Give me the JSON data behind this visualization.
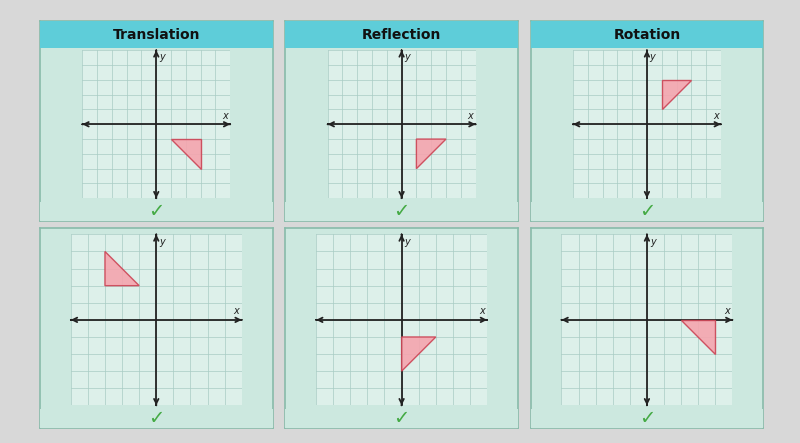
{
  "title_bg": "#5ecdd9",
  "panel_bg": "#cce8df",
  "outer_bg": "#d8d8d8",
  "inner_bg": "#b8d8d0",
  "grid_bg": "#ddf0ea",
  "triangle_fill": "#f5a5ae",
  "triangle_edge": "#cc4455",
  "checkmark_color": "#44aa44",
  "column_titles": [
    "Translation",
    "Reflection",
    "Rotation"
  ],
  "triangles": [
    [
      [
        1,
        -1
      ],
      [
        3,
        -1
      ],
      [
        3,
        -3
      ]
    ],
    [
      [
        1,
        -1
      ],
      [
        3,
        -1
      ],
      [
        1,
        -3
      ]
    ],
    [
      [
        1,
        1
      ],
      [
        1,
        3
      ],
      [
        3,
        3
      ]
    ],
    [
      [
        -3,
        2
      ],
      [
        -1,
        2
      ],
      [
        -3,
        4
      ]
    ],
    [
      [
        0,
        -1
      ],
      [
        2,
        -1
      ],
      [
        0,
        -3
      ]
    ],
    [
      [
        2,
        0
      ],
      [
        4,
        0
      ],
      [
        4,
        -2
      ]
    ]
  ],
  "xlim": [
    -5,
    5
  ],
  "ylim": [
    -5,
    5
  ]
}
